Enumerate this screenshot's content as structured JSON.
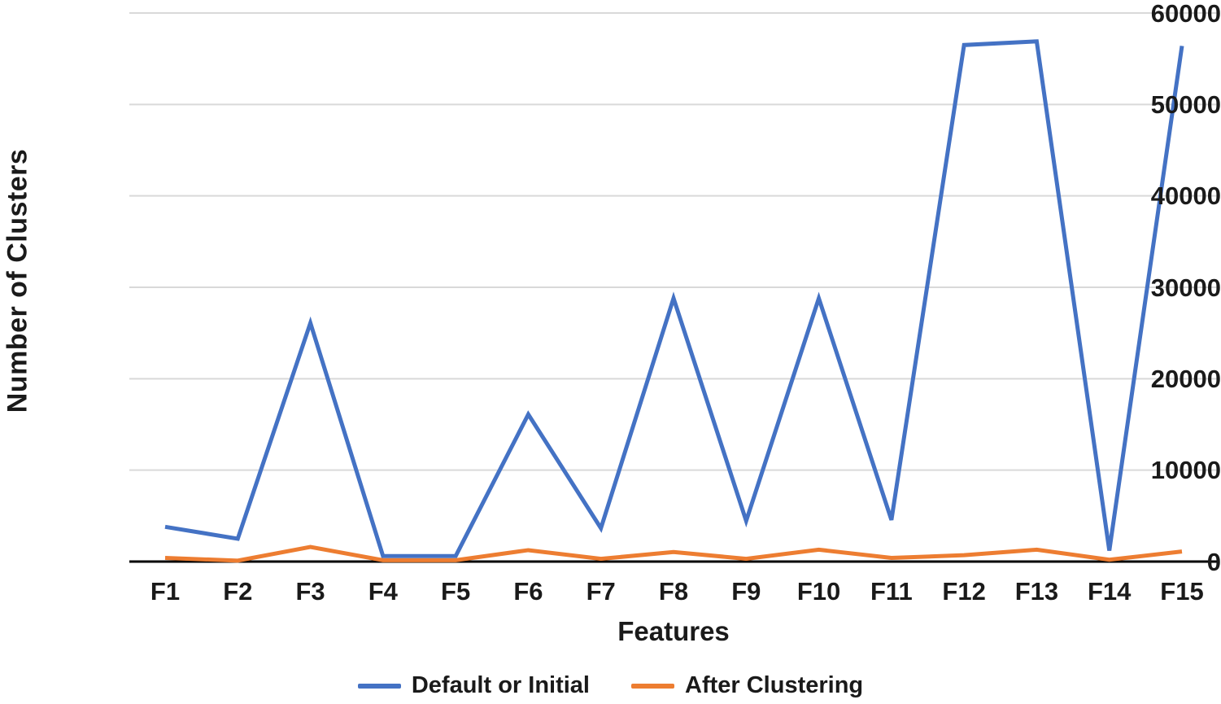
{
  "figure": {
    "background": "#FFFFFF",
    "text_color": "#1A1A1A"
  },
  "chart_data": {
    "type": "line",
    "title": "",
    "xlabel": "Features",
    "ylabel": "Number of Clusters",
    "categories": [
      "F1",
      "F2",
      "F3",
      "F4",
      "F5",
      "F6",
      "F7",
      "F8",
      "F9",
      "F10",
      "F11",
      "F12",
      "F13",
      "F14",
      "F15"
    ],
    "series": [
      {
        "name": "Default or Initial",
        "color": "#4472C4",
        "values": [
          3800,
          2500,
          26100,
          600,
          600,
          16100,
          3650,
          28800,
          4450,
          28800,
          4550,
          56500,
          56900,
          1200,
          56400
        ]
      },
      {
        "name": "After Clustering",
        "color": "#ED7D31",
        "values": [
          400,
          100,
          1600,
          150,
          150,
          1250,
          300,
          1050,
          300,
          1300,
          400,
          700,
          1300,
          200,
          1100
        ]
      }
    ],
    "ylim": [
      0,
      60000
    ],
    "yticks": [
      0,
      10000,
      20000,
      30000,
      40000,
      50000,
      60000
    ],
    "grid": "horizontal-only",
    "gridline_color": "#D9D9D9",
    "axis_line_color": "#000000",
    "legend_position": "bottom-center"
  }
}
